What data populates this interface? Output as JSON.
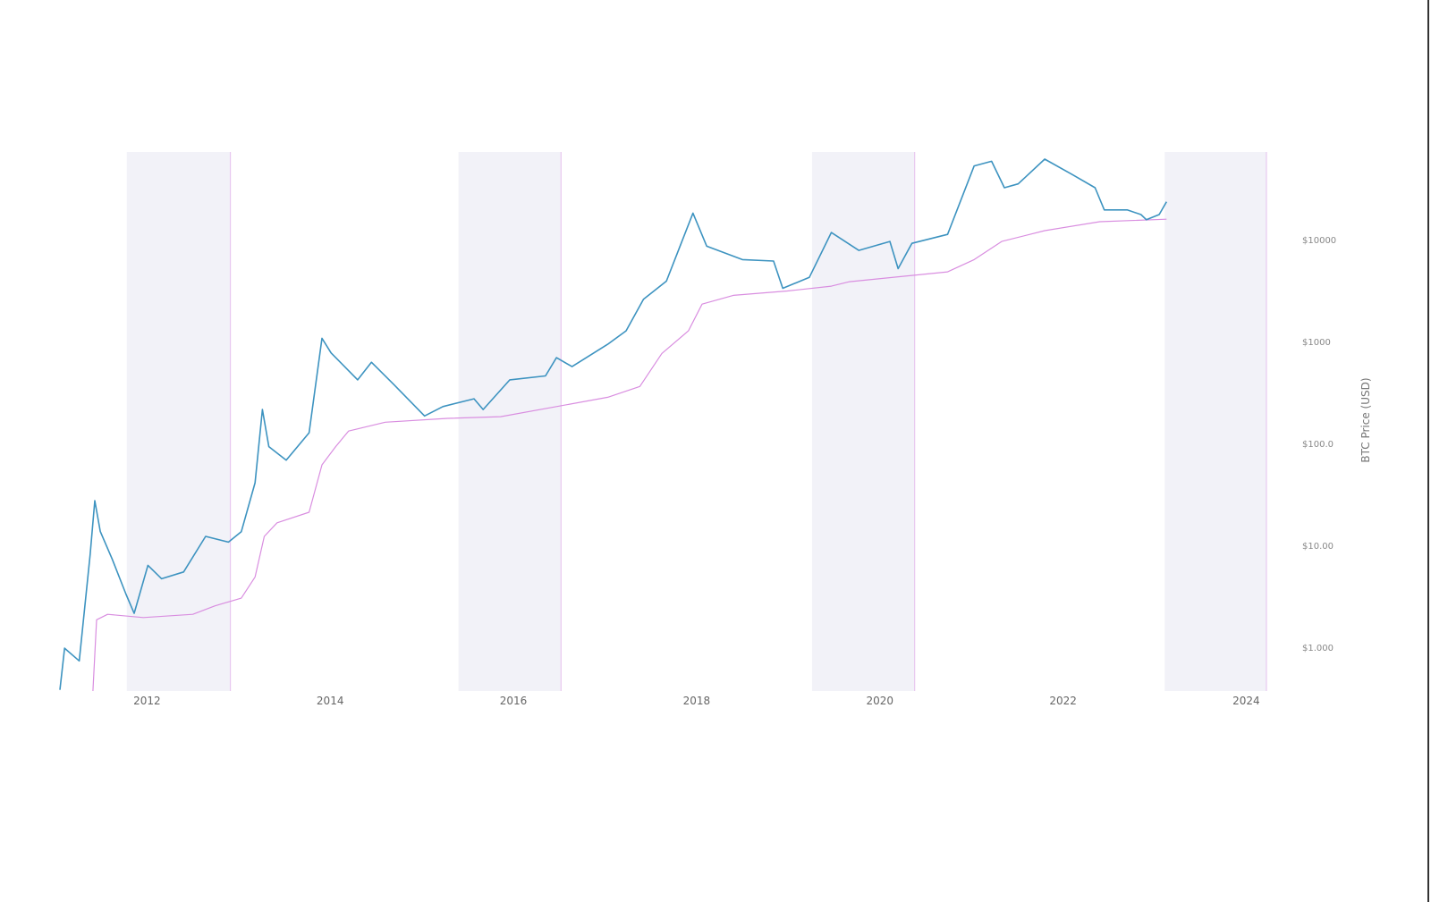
{
  "chart_data": {
    "type": "line",
    "title": "",
    "xlabel": "",
    "ylabel": "BTC Price (USD)",
    "yscale": "log",
    "xlim": [
      2011.03,
      2024.23
    ],
    "ylim": [
      0.38,
      74000
    ],
    "grid": false,
    "legend": "none",
    "x_ticks": [
      "2012",
      "2014",
      "2016",
      "2018",
      "2020",
      "2022",
      "2024"
    ],
    "y_ticks": [
      {
        "value": 10000,
        "label": "$10000"
      },
      {
        "value": 1000,
        "label": "$1000"
      },
      {
        "value": 100,
        "label": "$100.0"
      },
      {
        "value": 10,
        "label": "$10.00"
      },
      {
        "value": 1,
        "label": "$1.000"
      }
    ],
    "shaded_regions": [
      {
        "start": 2011.78,
        "end": 2012.91
      },
      {
        "start": 2015.4,
        "end": 2016.52
      },
      {
        "start": 2019.26,
        "end": 2020.38
      },
      {
        "start": 2023.11,
        "end": 2024.22
      }
    ],
    "colors": {
      "price": "#3d93c0",
      "floor": "#d98ee0",
      "shade": "#f2f2f8",
      "region_edge": "#e8c8f0"
    },
    "series": [
      {
        "key": "price",
        "points": [
          [
            2011.05,
            0.39
          ],
          [
            2011.1,
            1.0
          ],
          [
            2011.26,
            0.75
          ],
          [
            2011.38,
            8.3
          ],
          [
            2011.43,
            28
          ],
          [
            2011.49,
            14
          ],
          [
            2011.62,
            7.5
          ],
          [
            2011.77,
            3.4
          ],
          [
            2011.86,
            2.2
          ],
          [
            2012.01,
            6.5
          ],
          [
            2012.16,
            4.8
          ],
          [
            2012.4,
            5.6
          ],
          [
            2012.64,
            12.5
          ],
          [
            2012.89,
            11
          ],
          [
            2013.03,
            13.9
          ],
          [
            2013.18,
            42
          ],
          [
            2013.26,
            220
          ],
          [
            2013.33,
            95
          ],
          [
            2013.52,
            70
          ],
          [
            2013.77,
            130
          ],
          [
            2013.91,
            1100
          ],
          [
            2014.01,
            790
          ],
          [
            2014.3,
            430
          ],
          [
            2014.45,
            640
          ],
          [
            2014.69,
            390
          ],
          [
            2015.03,
            190
          ],
          [
            2015.23,
            235
          ],
          [
            2015.57,
            280
          ],
          [
            2015.67,
            220
          ],
          [
            2015.96,
            430
          ],
          [
            2016.35,
            470
          ],
          [
            2016.47,
            710
          ],
          [
            2016.64,
            580
          ],
          [
            2017.03,
            960
          ],
          [
            2017.23,
            1300
          ],
          [
            2017.42,
            2650
          ],
          [
            2017.67,
            4000
          ],
          [
            2017.96,
            18600
          ],
          [
            2018.11,
            8800
          ],
          [
            2018.5,
            6500
          ],
          [
            2018.84,
            6300
          ],
          [
            2018.94,
            3400
          ],
          [
            2019.23,
            4350
          ],
          [
            2019.47,
            12000
          ],
          [
            2019.77,
            8000
          ],
          [
            2020.11,
            9800
          ],
          [
            2020.2,
            5300
          ],
          [
            2020.35,
            9400
          ],
          [
            2020.74,
            11500
          ],
          [
            2021.03,
            54000
          ],
          [
            2021.22,
            60000
          ],
          [
            2021.36,
            33000
          ],
          [
            2021.51,
            36000
          ],
          [
            2021.8,
            63000
          ],
          [
            2022.1,
            44500
          ],
          [
            2022.35,
            33000
          ],
          [
            2022.45,
            20000
          ],
          [
            2022.7,
            20000
          ],
          [
            2022.85,
            18000
          ],
          [
            2022.91,
            16000
          ],
          [
            2023.05,
            18000
          ],
          [
            2023.13,
            24000
          ]
        ]
      },
      {
        "key": "floor",
        "points": [
          [
            2011.41,
            0.38
          ],
          [
            2011.45,
            1.9
          ],
          [
            2011.57,
            2.15
          ],
          [
            2011.96,
            2.0
          ],
          [
            2012.5,
            2.15
          ],
          [
            2012.74,
            2.6
          ],
          [
            2013.03,
            3.1
          ],
          [
            2013.18,
            5.0
          ],
          [
            2013.28,
            12.5
          ],
          [
            2013.42,
            17
          ],
          [
            2013.77,
            21.6
          ],
          [
            2013.91,
            63
          ],
          [
            2014.06,
            95
          ],
          [
            2014.2,
            135
          ],
          [
            2014.6,
            165
          ],
          [
            2015.28,
            180
          ],
          [
            2015.86,
            187
          ],
          [
            2016.45,
            233
          ],
          [
            2017.03,
            290
          ],
          [
            2017.38,
            370
          ],
          [
            2017.62,
            780
          ],
          [
            2017.91,
            1300
          ],
          [
            2018.06,
            2380
          ],
          [
            2018.4,
            2900
          ],
          [
            2018.99,
            3200
          ],
          [
            2019.47,
            3570
          ],
          [
            2019.67,
            3950
          ],
          [
            2020.74,
            4930
          ],
          [
            2021.03,
            6500
          ],
          [
            2021.33,
            9800
          ],
          [
            2021.8,
            12500
          ],
          [
            2022.4,
            15300
          ],
          [
            2023.13,
            16200
          ]
        ]
      }
    ]
  }
}
